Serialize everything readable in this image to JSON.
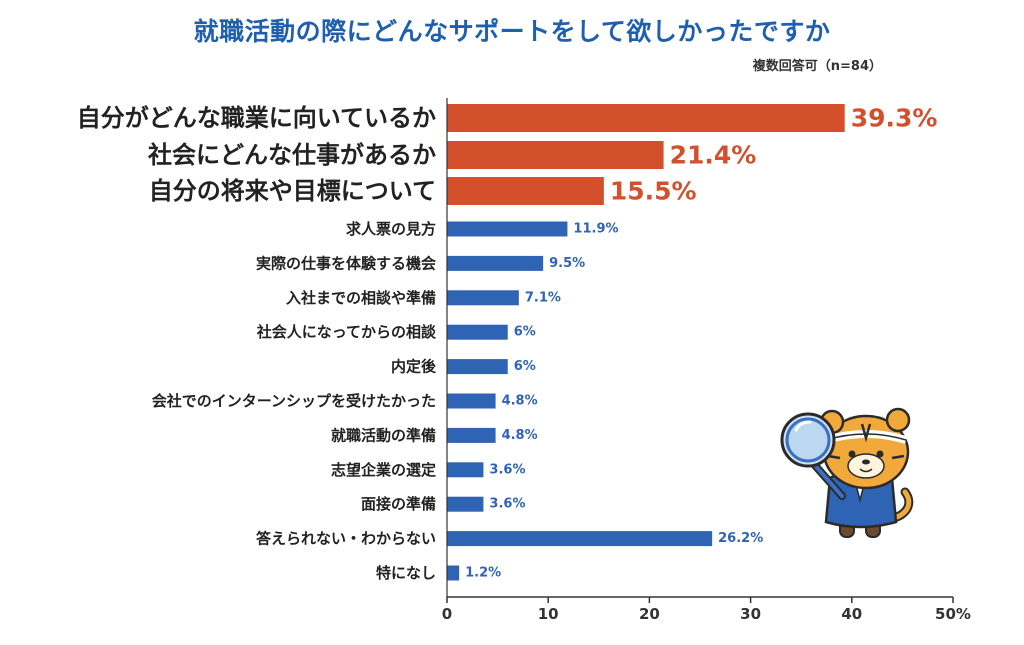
{
  "title": "就職活動の際にどんなサポートをして欲しかったですか",
  "note": "複数回答可（n=84）",
  "colors": {
    "highlight": "#d4502d",
    "normal": "#2f63b3",
    "title": "#1f5fb0",
    "axis": "#333333",
    "label": "#222222"
  },
  "mascot": {
    "icon": "tiger-mascot-with-magnifying-glass"
  },
  "chart_data": {
    "type": "bar",
    "orientation": "horizontal",
    "categories": [
      "自分がどんな職業に向いているか",
      "社会にどんな仕事があるか",
      "自分の将来や目標について",
      "求人票の見方",
      "実際の仕事を体験する機会",
      "入社までの相談や準備",
      "社会人になってからの相談",
      "内定後",
      "会社でのインターンシップを受けたかった",
      "就職活動の準備",
      "志望企業の選定",
      "面接の準備",
      "答えられない・わからない",
      "特になし"
    ],
    "values": [
      39.3,
      21.4,
      15.5,
      11.9,
      9.5,
      7.1,
      6,
      6,
      4.8,
      4.8,
      3.6,
      3.6,
      26.2,
      1.2
    ],
    "value_labels": [
      "39.3%",
      "21.4%",
      "15.5%",
      "11.9%",
      "9.5%",
      "7.1%",
      "6%",
      "6%",
      "4.8%",
      "4.8%",
      "3.6%",
      "3.6%",
      "26.2%",
      "1.2%"
    ],
    "highlighted": [
      true,
      true,
      true,
      false,
      false,
      false,
      false,
      false,
      false,
      false,
      false,
      false,
      false,
      false
    ],
    "xlim": [
      0,
      50
    ],
    "ticks": [
      "0",
      "10",
      "20",
      "30",
      "40",
      "50%"
    ],
    "tick_values": [
      0,
      10,
      20,
      30,
      40,
      50
    ],
    "grid": false,
    "legend": "none"
  }
}
